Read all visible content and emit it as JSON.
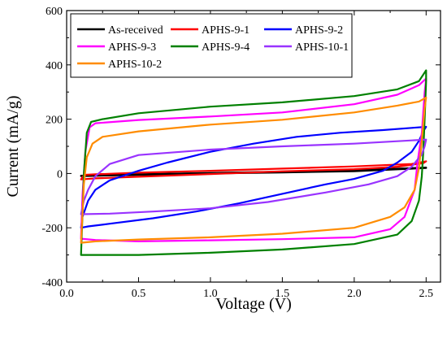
{
  "chart_data": {
    "type": "line",
    "title": "",
    "xlabel": "Voltage (V)",
    "ylabel": "Current (mA/g)",
    "xlim": [
      0.0,
      2.6
    ],
    "ylim": [
      -400,
      600
    ],
    "x_ticks": [
      0.0,
      0.5,
      1.0,
      1.5,
      2.0,
      2.5
    ],
    "x_tick_labels": [
      "0.0",
      "0.5",
      "1.0",
      "1.5",
      "2.0",
      "2.5"
    ],
    "y_ticks": [
      -400,
      -200,
      0,
      200,
      400,
      600
    ],
    "y_tick_labels": [
      "-400",
      "-200",
      "0",
      "200",
      "400",
      "600"
    ],
    "grid": false,
    "legend_position": "top-left",
    "series": [
      {
        "name": "As-received",
        "color": "#000000",
        "points": [
          [
            0.1,
            -8
          ],
          [
            0.5,
            -3
          ],
          [
            1.0,
            2
          ],
          [
            1.5,
            7
          ],
          [
            2.0,
            12
          ],
          [
            2.5,
            22
          ],
          [
            2.5,
            20
          ],
          [
            2.0,
            8
          ],
          [
            1.5,
            4
          ],
          [
            1.0,
            0
          ],
          [
            0.5,
            -5
          ],
          [
            0.1,
            -10
          ]
        ]
      },
      {
        "name": "APHS-9-1",
        "color": "#ff0000",
        "points": [
          [
            0.1,
            -22
          ],
          [
            0.12,
            -5
          ],
          [
            0.2,
            -3
          ],
          [
            0.5,
            3
          ],
          [
            1.0,
            10
          ],
          [
            1.5,
            18
          ],
          [
            2.0,
            26
          ],
          [
            2.4,
            35
          ],
          [
            2.5,
            45
          ],
          [
            2.48,
            38
          ],
          [
            2.3,
            25
          ],
          [
            2.0,
            16
          ],
          [
            1.5,
            8
          ],
          [
            1.0,
            -2
          ],
          [
            0.5,
            -12
          ],
          [
            0.2,
            -18
          ],
          [
            0.1,
            -22
          ]
        ]
      },
      {
        "name": "APHS-9-2",
        "color": "#0000ff",
        "points": [
          [
            0.1,
            -200
          ],
          [
            0.11,
            -160
          ],
          [
            0.15,
            -100
          ],
          [
            0.2,
            -60
          ],
          [
            0.3,
            -25
          ],
          [
            0.5,
            10
          ],
          [
            0.7,
            40
          ],
          [
            1.0,
            80
          ],
          [
            1.3,
            110
          ],
          [
            1.6,
            135
          ],
          [
            1.9,
            150
          ],
          [
            2.2,
            160
          ],
          [
            2.4,
            168
          ],
          [
            2.5,
            172
          ],
          [
            2.48,
            155
          ],
          [
            2.45,
            120
          ],
          [
            2.4,
            80
          ],
          [
            2.3,
            40
          ],
          [
            2.2,
            10
          ],
          [
            2.0,
            -20
          ],
          [
            1.8,
            -40
          ],
          [
            1.5,
            -75
          ],
          [
            1.2,
            -110
          ],
          [
            0.9,
            -140
          ],
          [
            0.6,
            -165
          ],
          [
            0.3,
            -185
          ],
          [
            0.15,
            -195
          ],
          [
            0.1,
            -200
          ]
        ]
      },
      {
        "name": "APHS-9-3",
        "color": "#ff00ff",
        "points": [
          [
            0.1,
            -240
          ],
          [
            0.11,
            -80
          ],
          [
            0.13,
            80
          ],
          [
            0.16,
            170
          ],
          [
            0.2,
            185
          ],
          [
            0.5,
            197
          ],
          [
            1.0,
            210
          ],
          [
            1.5,
            225
          ],
          [
            2.0,
            255
          ],
          [
            2.3,
            290
          ],
          [
            2.45,
            325
          ],
          [
            2.5,
            350
          ],
          [
            2.49,
            300
          ],
          [
            2.47,
            150
          ],
          [
            2.44,
            40
          ],
          [
            2.42,
            -60
          ],
          [
            2.35,
            -160
          ],
          [
            2.25,
            -205
          ],
          [
            2.0,
            -235
          ],
          [
            1.5,
            -242
          ],
          [
            1.0,
            -246
          ],
          [
            0.5,
            -250
          ],
          [
            0.2,
            -245
          ],
          [
            0.1,
            -240
          ]
        ]
      },
      {
        "name": "APHS-9-4",
        "color": "#008000",
        "points": [
          [
            0.1,
            -300
          ],
          [
            0.11,
            -150
          ],
          [
            0.12,
            0
          ],
          [
            0.14,
            150
          ],
          [
            0.17,
            190
          ],
          [
            0.25,
            200
          ],
          [
            0.5,
            222
          ],
          [
            1.0,
            246
          ],
          [
            1.5,
            262
          ],
          [
            2.0,
            285
          ],
          [
            2.3,
            310
          ],
          [
            2.45,
            340
          ],
          [
            2.5,
            380
          ],
          [
            2.5,
            340
          ],
          [
            2.49,
            200
          ],
          [
            2.48,
            80
          ],
          [
            2.47,
            -10
          ],
          [
            2.45,
            -100
          ],
          [
            2.4,
            -175
          ],
          [
            2.3,
            -225
          ],
          [
            2.0,
            -260
          ],
          [
            1.5,
            -280
          ],
          [
            1.0,
            -292
          ],
          [
            0.5,
            -300
          ],
          [
            0.2,
            -300
          ],
          [
            0.1,
            -300
          ]
        ]
      },
      {
        "name": "APHS-10-1",
        "color": "#9933ff",
        "points": [
          [
            0.1,
            -150
          ],
          [
            0.12,
            -100
          ],
          [
            0.15,
            -60
          ],
          [
            0.2,
            -10
          ],
          [
            0.3,
            35
          ],
          [
            0.5,
            68
          ],
          [
            0.8,
            80
          ],
          [
            1.0,
            88
          ],
          [
            1.5,
            100
          ],
          [
            2.0,
            110
          ],
          [
            2.5,
            125
          ],
          [
            2.49,
            100
          ],
          [
            2.47,
            70
          ],
          [
            2.4,
            25
          ],
          [
            2.3,
            -10
          ],
          [
            2.1,
            -40
          ],
          [
            1.8,
            -70
          ],
          [
            1.4,
            -105
          ],
          [
            1.0,
            -128
          ],
          [
            0.6,
            -140
          ],
          [
            0.3,
            -148
          ],
          [
            0.1,
            -150
          ]
        ]
      },
      {
        "name": "APHS-10-2",
        "color": "#ff8c00",
        "points": [
          [
            0.1,
            -255
          ],
          [
            0.11,
            -150
          ],
          [
            0.12,
            -40
          ],
          [
            0.14,
            60
          ],
          [
            0.18,
            110
          ],
          [
            0.25,
            135
          ],
          [
            0.5,
            155
          ],
          [
            1.0,
            180
          ],
          [
            1.5,
            198
          ],
          [
            2.0,
            225
          ],
          [
            2.3,
            250
          ],
          [
            2.45,
            265
          ],
          [
            2.5,
            280
          ],
          [
            2.49,
            240
          ],
          [
            2.47,
            120
          ],
          [
            2.45,
            20
          ],
          [
            2.42,
            -60
          ],
          [
            2.35,
            -125
          ],
          [
            2.25,
            -160
          ],
          [
            2.0,
            -200
          ],
          [
            1.5,
            -222
          ],
          [
            1.0,
            -235
          ],
          [
            0.5,
            -243
          ],
          [
            0.2,
            -250
          ],
          [
            0.1,
            -255
          ]
        ]
      }
    ]
  }
}
